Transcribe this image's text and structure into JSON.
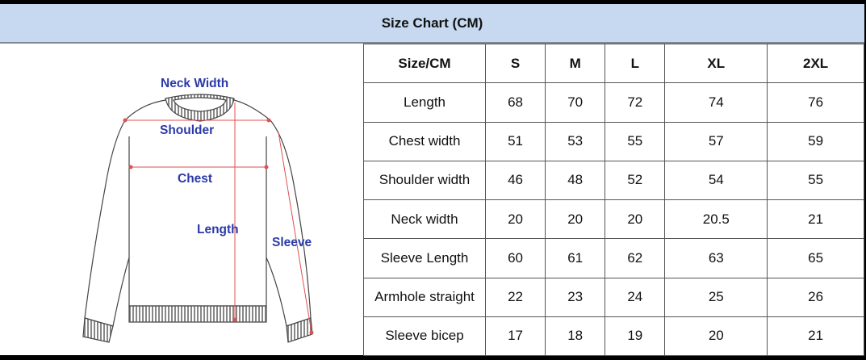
{
  "title": "Size Chart (CM)",
  "figure_labels": {
    "neck_width": "Neck Width",
    "shoulder": "Shoulder",
    "chest": "Chest",
    "length": "Length",
    "sleeve": "Sleeve"
  },
  "colors": {
    "header_band": "#c6d9f0",
    "label_text": "#2b3aa8",
    "measure_lines": "#e05050"
  },
  "table": {
    "header": [
      "Size/CM",
      "S",
      "M",
      "L",
      "XL",
      "2XL"
    ],
    "rows": [
      {
        "label": "Length",
        "values": [
          "68",
          "70",
          "72",
          "74",
          "76"
        ]
      },
      {
        "label": "Chest width",
        "values": [
          "51",
          "53",
          "55",
          "57",
          "59"
        ]
      },
      {
        "label": "Shoulder width",
        "values": [
          "46",
          "48",
          "52",
          "54",
          "55"
        ]
      },
      {
        "label": "Neck width",
        "values": [
          "20",
          "20",
          "20",
          "20.5",
          "21"
        ]
      },
      {
        "label": "Sleeve Length",
        "values": [
          "60",
          "61",
          "62",
          "63",
          "65"
        ]
      },
      {
        "label": "Armhole straight",
        "values": [
          "22",
          "23",
          "24",
          "25",
          "26"
        ]
      },
      {
        "label": "Sleeve bicep",
        "values": [
          "17",
          "18",
          "19",
          "20",
          "21"
        ]
      }
    ]
  }
}
